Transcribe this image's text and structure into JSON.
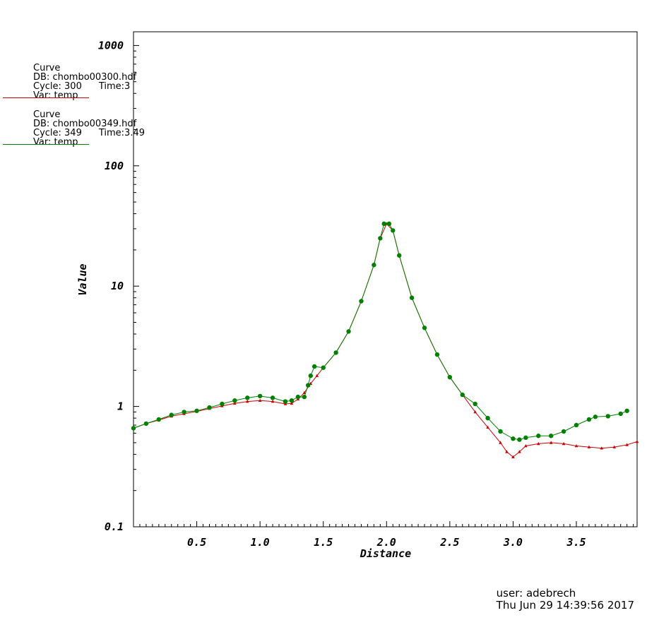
{
  "legend": [
    {
      "title": "Curve",
      "db": "DB: chombo00300.hdf",
      "cycle": "Cycle: 300",
      "time": "Time:3",
      "var": "Var: temp",
      "color": "#cc0000"
    },
    {
      "title": "Curve",
      "db": "DB: chombo00349.hdf",
      "cycle": "Cycle: 349",
      "time": "Time:3.49",
      "var": "Var: temp",
      "color": "#008000"
    }
  ],
  "footer": {
    "user": "user: adebrech",
    "date": "Thu Jun 29 14:39:56 2017"
  },
  "chart_data": {
    "type": "line",
    "xlabel": "Distance",
    "ylabel": "Value",
    "xlim": [
      0,
      3.98
    ],
    "ylim": [
      0.1,
      1300
    ],
    "yscale": "log",
    "xticks": [
      "0.5",
      "1.0",
      "1.5",
      "2.0",
      "2.5",
      "3.0",
      "3.5"
    ],
    "yticks": [
      "0.1",
      "1",
      "10",
      "100",
      "1000"
    ],
    "grid": false,
    "series": [
      {
        "name": "Var: temp",
        "color": "#cc0000",
        "marker": "triangle",
        "points": [
          [
            0,
            0.66
          ],
          [
            0.1,
            0.72
          ],
          [
            0.2,
            0.77
          ],
          [
            0.3,
            0.83
          ],
          [
            0.4,
            0.87
          ],
          [
            0.5,
            0.91
          ],
          [
            0.6,
            0.96
          ],
          [
            0.7,
            1.01
          ],
          [
            0.8,
            1.06
          ],
          [
            0.9,
            1.1
          ],
          [
            1.0,
            1.12
          ],
          [
            1.1,
            1.1
          ],
          [
            1.2,
            1.05
          ],
          [
            1.25,
            1.06
          ],
          [
            1.3,
            1.15
          ],
          [
            1.35,
            1.3
          ],
          [
            1.4,
            1.55
          ],
          [
            1.45,
            1.8
          ],
          [
            1.5,
            2.1
          ],
          [
            1.6,
            2.8
          ],
          [
            1.7,
            4.2
          ],
          [
            1.8,
            7.5
          ],
          [
            1.9,
            15
          ],
          [
            1.95,
            25
          ],
          [
            2.0,
            33
          ],
          [
            2.05,
            29
          ],
          [
            2.1,
            18
          ],
          [
            2.2,
            8
          ],
          [
            2.3,
            4.5
          ],
          [
            2.4,
            2.7
          ],
          [
            2.5,
            1.75
          ],
          [
            2.6,
            1.25
          ],
          [
            2.7,
            0.9
          ],
          [
            2.8,
            0.67
          ],
          [
            2.9,
            0.5
          ],
          [
            2.95,
            0.42
          ],
          [
            3.0,
            0.38
          ],
          [
            3.05,
            0.42
          ],
          [
            3.1,
            0.47
          ],
          [
            3.2,
            0.49
          ],
          [
            3.3,
            0.5
          ],
          [
            3.4,
            0.49
          ],
          [
            3.5,
            0.47
          ],
          [
            3.6,
            0.46
          ],
          [
            3.7,
            0.45
          ],
          [
            3.8,
            0.46
          ],
          [
            3.9,
            0.48
          ],
          [
            3.98,
            0.51
          ]
        ]
      },
      {
        "name": "Var: temp",
        "color": "#008000",
        "marker": "circle",
        "points": [
          [
            0,
            0.66
          ],
          [
            0.1,
            0.72
          ],
          [
            0.2,
            0.78
          ],
          [
            0.3,
            0.85
          ],
          [
            0.4,
            0.9
          ],
          [
            0.5,
            0.92
          ],
          [
            0.6,
            0.98
          ],
          [
            0.7,
            1.05
          ],
          [
            0.8,
            1.12
          ],
          [
            0.9,
            1.18
          ],
          [
            1.0,
            1.22
          ],
          [
            1.1,
            1.18
          ],
          [
            1.2,
            1.1
          ],
          [
            1.25,
            1.12
          ],
          [
            1.3,
            1.2
          ],
          [
            1.35,
            1.2
          ],
          [
            1.38,
            1.5
          ],
          [
            1.4,
            1.8
          ],
          [
            1.43,
            2.15
          ],
          [
            1.5,
            2.1
          ],
          [
            1.6,
            2.8
          ],
          [
            1.7,
            4.2
          ],
          [
            1.8,
            7.5
          ],
          [
            1.9,
            15
          ],
          [
            1.95,
            25
          ],
          [
            1.98,
            33
          ],
          [
            2.02,
            33
          ],
          [
            2.05,
            29
          ],
          [
            2.1,
            18
          ],
          [
            2.2,
            8
          ],
          [
            2.3,
            4.5
          ],
          [
            2.4,
            2.7
          ],
          [
            2.5,
            1.75
          ],
          [
            2.6,
            1.25
          ],
          [
            2.7,
            1.05
          ],
          [
            2.8,
            0.8
          ],
          [
            2.9,
            0.62
          ],
          [
            3.0,
            0.54
          ],
          [
            3.05,
            0.53
          ],
          [
            3.1,
            0.55
          ],
          [
            3.2,
            0.57
          ],
          [
            3.3,
            0.57
          ],
          [
            3.4,
            0.62
          ],
          [
            3.5,
            0.7
          ],
          [
            3.6,
            0.78
          ],
          [
            3.65,
            0.82
          ],
          [
            3.75,
            0.83
          ],
          [
            3.85,
            0.87
          ],
          [
            3.9,
            0.92
          ]
        ]
      }
    ]
  }
}
